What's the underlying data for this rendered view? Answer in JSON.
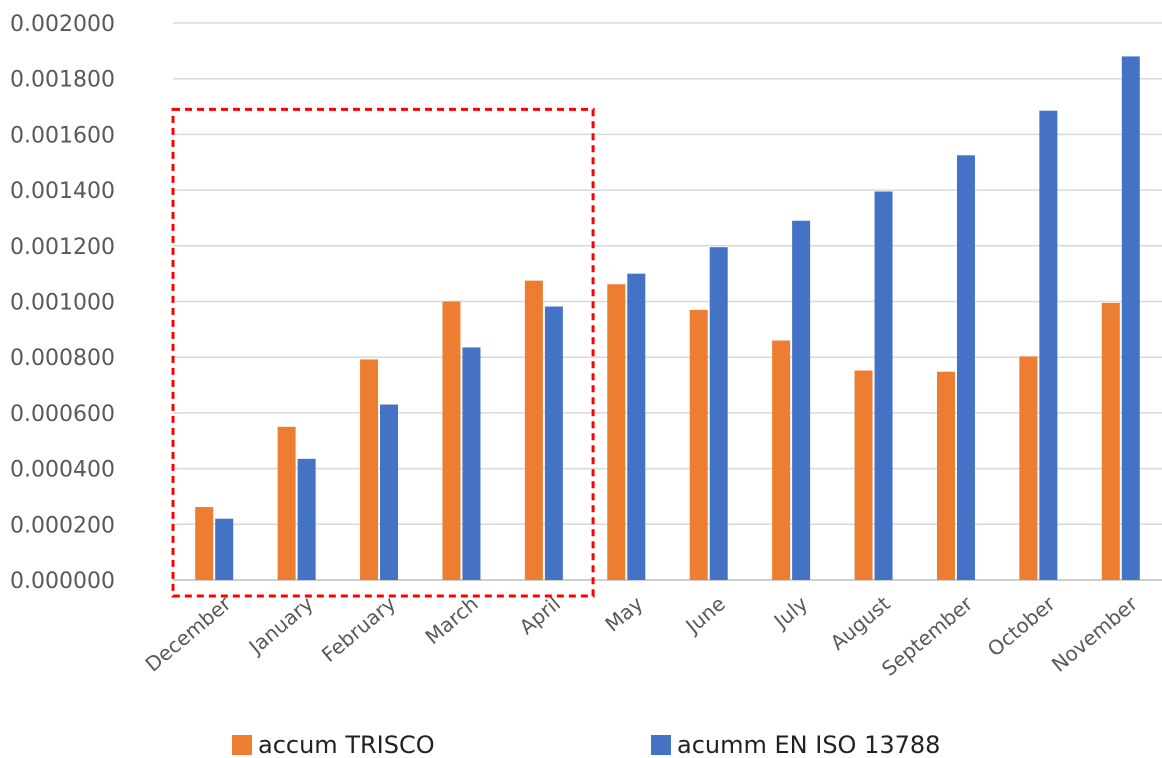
{
  "chart_data": {
    "type": "bar",
    "title": "",
    "xlabel": "",
    "ylabel": "",
    "categories": [
      "December",
      "January",
      "February",
      "March",
      "April",
      "May",
      "June",
      "July",
      "August",
      "September",
      "October",
      "November"
    ],
    "series": [
      {
        "name": "accum TRISCO",
        "color": "#ED7D31",
        "values": [
          0.000262,
          0.00055,
          0.000792,
          0.001,
          0.001075,
          0.001062,
          0.00097,
          0.00086,
          0.000752,
          0.000748,
          0.000803,
          0.000995
        ]
      },
      {
        "name": "acumm EN ISO 13788",
        "color": "#4472C4",
        "values": [
          0.00022,
          0.000435,
          0.00063,
          0.000835,
          0.000982,
          0.0011,
          0.001195,
          0.00129,
          0.001395,
          0.001525,
          0.001685,
          0.00188
        ]
      }
    ],
    "ylim": [
      0,
      0.002
    ],
    "yticks": [
      "0.000000",
      "0.000200",
      "0.000400",
      "0.000600",
      "0.000800",
      "0.001000",
      "0.001200",
      "0.001400",
      "0.001600",
      "0.001800",
      "0.002000"
    ],
    "grid": true,
    "legend": "bottom",
    "highlight": {
      "categories": [
        "December",
        "January",
        "February",
        "March",
        "April"
      ],
      "style": "red dashed rectangle",
      "color": "#FF0000"
    }
  }
}
